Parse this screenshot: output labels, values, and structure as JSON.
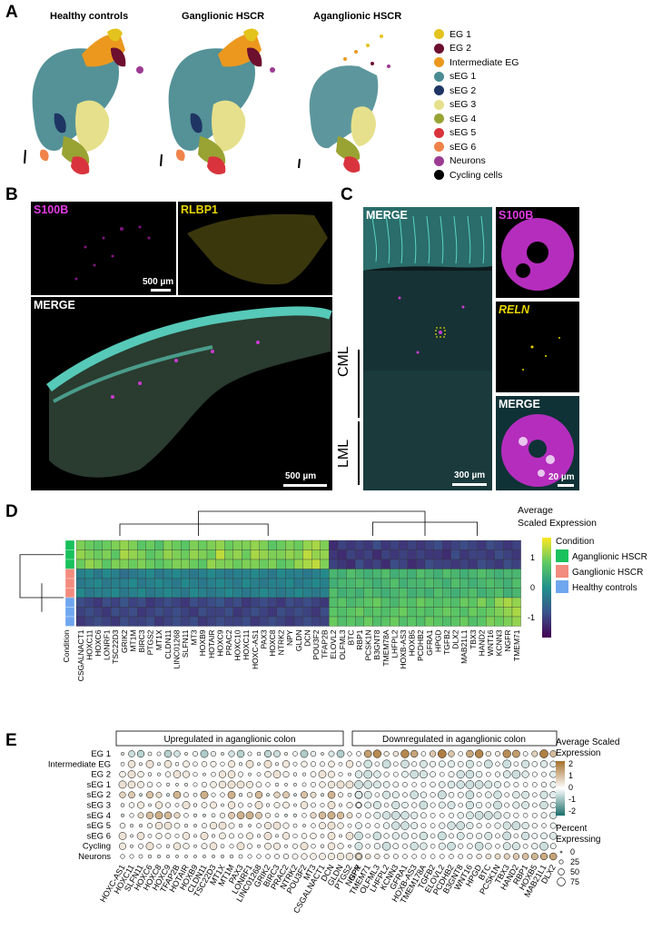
{
  "panels": {
    "a": "A",
    "b": "B",
    "c": "C",
    "d": "D",
    "e": "E"
  },
  "umap": {
    "titles": [
      "Healthy controls",
      "Ganglionic HSCR",
      "Aganglionic HSCR"
    ],
    "legend": [
      {
        "label": "EG 1",
        "color": "#e3c31d"
      },
      {
        "label": "EG 2",
        "color": "#6d0f2e"
      },
      {
        "label": "Intermediate EG",
        "color": "#ec981e"
      },
      {
        "label": "sEG 1",
        "color": "#4b8c92"
      },
      {
        "label": "sEG 2",
        "color": "#1e3563"
      },
      {
        "label": "sEG 3",
        "color": "#e6e08c"
      },
      {
        "label": "sEG 4",
        "color": "#99a333"
      },
      {
        "label": "sEG 5",
        "color": "#d9343d"
      },
      {
        "label": "sEG 6",
        "color": "#f0834a"
      },
      {
        "label": "Neurons",
        "color": "#9c3b92"
      },
      {
        "label": "Cycling cells",
        "color": "#000000"
      }
    ]
  },
  "micro_b": {
    "s100b": "S100B",
    "rlbp1": "RLBP1",
    "merge": "MERGE",
    "scale1": "500 µm",
    "scale2": "500 µm"
  },
  "micro_c": {
    "merge": "MERGE",
    "s100b": "S100B",
    "reln": "RELN",
    "merge2": "MERGE",
    "cml": "CML",
    "lml": "LML",
    "scale1": "300 µm",
    "scale2": "20 µm"
  },
  "heatmap": {
    "title_line1": "Average",
    "title_line2": "Scaled Expression",
    "colorbar_ticks": [
      "1",
      "0",
      "-1"
    ],
    "condition_title": "Condition",
    "conditions": [
      {
        "label": "Aganglionic HSCR",
        "color": "#19c15c"
      },
      {
        "label": "Ganglionic HSCR",
        "color": "#f28c7e"
      },
      {
        "label": "Healthy controls",
        "color": "#6fa7ef"
      }
    ],
    "condition_axis_label": "Condition",
    "genes": [
      "CSGALNACT1",
      "HOXC11",
      "HOXC6",
      "LONRF1",
      "TSC22D3",
      "GRIK2",
      "MT1M",
      "BIRC3",
      "PTGS2",
      "MT1X",
      "CLDN11",
      "LINC01268",
      "SLFN11",
      "MT3",
      "HOXB9",
      "HOTAIR",
      "HOXC9",
      "PRAC2",
      "HOXC10",
      "HOXC11",
      "HOXC-AS1",
      "PAX3",
      "HOXC8",
      "NTRK2",
      "NPY",
      "GLDN",
      "DCN",
      "POU3F2",
      "TFAP2B",
      "ELOVL2",
      "OLFML3",
      "BTC",
      "RBP1",
      "PCSK1N",
      "B3GNT8",
      "TMEM78A",
      "LHFPL2",
      "HOXB-AS3",
      "HOXB5",
      "PCDHB2",
      "GFRA1",
      "HPGD",
      "TGFB2",
      "DLX2",
      "MAB21L1",
      "TBX3",
      "HAND2",
      "WNT16",
      "KCNN3",
      "NGFR",
      "TMEM71"
    ],
    "group_sizes": [
      3,
      3,
      3
    ],
    "values": [
      [
        0.9,
        0.8,
        0.7,
        0.8,
        0.9,
        1.0,
        0.9,
        0.7,
        0.8,
        0.6,
        0.9,
        0.8,
        0.7,
        0.9,
        0.8,
        0.9,
        1.0,
        0.8,
        0.9,
        0.9,
        1.0,
        0.9,
        0.7,
        0.8,
        0.9,
        0.8,
        1.0,
        1.1,
        0.9,
        -1.1,
        -0.9,
        -1.0,
        -0.9,
        -1.0,
        -0.8,
        -1.0,
        -0.9,
        -1.0,
        -0.9,
        -1.0,
        -0.9,
        -0.8,
        -1.0,
        -0.9,
        -0.8,
        -0.9,
        -1.0,
        -0.8,
        -0.9,
        -1.0,
        -0.9
      ],
      [
        1.0,
        0.9,
        0.8,
        0.9,
        0.7,
        1.1,
        1.0,
        0.9,
        0.7,
        0.8,
        1.0,
        0.9,
        0.8,
        1.0,
        0.9,
        0.8,
        1.2,
        0.9,
        1.0,
        0.8,
        1.1,
        1.0,
        0.9,
        0.9,
        1.0,
        0.9,
        1.2,
        1.0,
        1.0,
        -1.0,
        -1.1,
        -0.9,
        -1.0,
        -0.9,
        -1.1,
        -0.9,
        -1.0,
        -0.9,
        -1.0,
        -0.9,
        -1.0,
        -1.0,
        -1.1,
        -0.8,
        -1.0,
        -0.9,
        -0.9,
        -1.0,
        -0.8,
        -0.9,
        -1.0
      ],
      [
        0.8,
        1.0,
        0.9,
        0.7,
        0.9,
        0.9,
        0.8,
        0.9,
        0.8,
        0.7,
        0.8,
        0.9,
        0.9,
        0.8,
        0.7,
        1.0,
        0.9,
        0.9,
        0.8,
        0.9,
        0.9,
        0.8,
        0.9,
        0.7,
        0.8,
        1.0,
        1.1,
        1.2,
        0.9,
        -0.9,
        -1.0,
        -1.1,
        -0.8,
        -1.0,
        -0.9,
        -1.1,
        -0.8,
        -0.9,
        -1.1,
        -1.0,
        -0.8,
        -0.9,
        -0.9,
        -1.0,
        -0.9,
        -1.0,
        -0.8,
        -0.9,
        -1.0,
        -0.8,
        -0.9
      ],
      [
        -0.2,
        -0.1,
        -0.3,
        -0.1,
        -0.2,
        -0.4,
        -0.3,
        -0.2,
        -0.1,
        -0.3,
        -0.2,
        -0.1,
        -0.2,
        -0.3,
        -0.2,
        -0.1,
        -0.2,
        -0.3,
        -0.2,
        -0.2,
        -0.1,
        -0.2,
        -0.3,
        -0.1,
        -0.2,
        -0.2,
        -0.3,
        -0.2,
        -0.1,
        0.5,
        0.4,
        0.6,
        0.5,
        0.4,
        0.5,
        0.6,
        0.4,
        0.5,
        0.4,
        0.6,
        0.5,
        0.4,
        0.6,
        0.5,
        0.4,
        0.5,
        0.6,
        0.5,
        0.4,
        0.5,
        0.5
      ],
      [
        -0.3,
        -0.2,
        -0.1,
        -0.3,
        -0.2,
        -0.2,
        -0.1,
        -0.3,
        -0.2,
        -0.1,
        -0.2,
        -0.3,
        -0.1,
        -0.2,
        -0.3,
        -0.2,
        -0.1,
        -0.2,
        -0.3,
        -0.1,
        -0.2,
        -0.3,
        -0.2,
        -0.2,
        -0.1,
        -0.3,
        -0.2,
        -0.1,
        -0.2,
        0.4,
        0.5,
        0.5,
        0.6,
        0.5,
        0.4,
        0.5,
        0.6,
        0.4,
        0.5,
        0.5,
        0.6,
        0.5,
        0.4,
        0.6,
        0.5,
        0.4,
        0.5,
        0.6,
        0.5,
        0.4,
        0.6
      ],
      [
        -0.1,
        -0.3,
        -0.2,
        -0.2,
        -0.1,
        -0.3,
        -0.2,
        -0.1,
        -0.3,
        -0.2,
        -0.1,
        -0.2,
        -0.3,
        -0.1,
        -0.2,
        -0.3,
        -0.2,
        -0.1,
        -0.2,
        -0.3,
        -0.2,
        -0.1,
        -0.2,
        -0.3,
        -0.2,
        -0.1,
        -0.2,
        -0.3,
        -0.2,
        0.6,
        0.4,
        0.5,
        0.4,
        0.6,
        0.5,
        0.4,
        0.5,
        0.6,
        0.4,
        0.5,
        0.4,
        0.6,
        0.5,
        0.4,
        0.5,
        0.6,
        0.4,
        0.5,
        0.6,
        0.4,
        0.5
      ],
      [
        -0.8,
        -0.9,
        -1.0,
        -0.8,
        -0.9,
        -0.7,
        -0.9,
        -0.8,
        -1.0,
        -0.9,
        -0.8,
        -0.9,
        -1.0,
        -0.8,
        -0.9,
        -0.8,
        -0.7,
        -0.9,
        -0.8,
        -1.0,
        -0.9,
        -0.8,
        -0.9,
        -1.0,
        -0.8,
        -0.9,
        -0.8,
        -0.9,
        -1.0,
        0.6,
        0.7,
        0.5,
        0.6,
        0.7,
        0.8,
        0.6,
        0.5,
        0.7,
        0.6,
        0.8,
        0.7,
        0.6,
        0.7,
        0.6,
        0.8,
        0.7,
        0.9,
        0.7,
        1.0,
        1.1,
        1.0
      ],
      [
        -0.9,
        -0.8,
        -0.9,
        -1.0,
        -0.8,
        -0.9,
        -0.8,
        -1.0,
        -0.9,
        -0.8,
        -0.9,
        -0.8,
        -0.9,
        -1.0,
        -0.8,
        -0.9,
        -0.9,
        -0.8,
        -1.0,
        -0.9,
        -0.8,
        -0.9,
        -1.0,
        -0.8,
        -0.9,
        -0.8,
        -0.9,
        -1.0,
        -0.8,
        0.7,
        0.6,
        0.7,
        0.8,
        0.6,
        0.7,
        0.6,
        0.7,
        0.8,
        0.6,
        0.7,
        0.6,
        0.7,
        0.8,
        0.7,
        0.6,
        0.8,
        0.7,
        0.8,
        0.9,
        1.0,
        1.1
      ],
      [
        -1.0,
        -0.9,
        -0.8,
        -0.9,
        -1.0,
        -0.8,
        -0.9,
        -0.9,
        -0.8,
        -1.0,
        -0.9,
        -0.8,
        -0.9,
        -0.8,
        -1.0,
        -0.9,
        -0.8,
        -0.9,
        -0.9,
        -0.8,
        -1.0,
        -0.9,
        -0.8,
        -0.9,
        -1.0,
        -0.9,
        -0.8,
        -0.9,
        -0.9,
        0.8,
        0.6,
        0.7,
        0.6,
        0.8,
        0.6,
        0.7,
        0.8,
        0.6,
        0.7,
        0.6,
        0.8,
        0.7,
        0.6,
        0.7,
        0.8,
        0.6,
        0.7,
        0.9,
        0.8,
        0.9,
        1.0
      ]
    ]
  },
  "dotplot": {
    "up_title": "Upregulated in aganglionic colon",
    "down_title": "Downregulated in aganglionic colon",
    "rows": [
      "EG 1",
      "Intermediate EG",
      "EG 2",
      "sEG 1",
      "sEG 2",
      "sEG 3",
      "sEG 4",
      "sEG 5",
      "sEG 6",
      "Cycling",
      "Neurons"
    ],
    "up_genes": [
      "HOXC-AS1",
      "HOXC11",
      "SLFN11",
      "HOXC6",
      "HOXC8",
      "HOXC9",
      "TFAP2B",
      "HOTAIR",
      "HOXB9",
      "CLDN11",
      "TSC22D3",
      "MT1X",
      "MT1M",
      "PAX3",
      "LONRF1",
      "LINC01268",
      "GRIK2",
      "BIRC3",
      "PRAC2",
      "NTRK2",
      "POU3F2",
      "MT3",
      "CSGALNACT1",
      "DCN",
      "GLDN",
      "PTGS2",
      "NPY"
    ],
    "down_genes": [
      "NGFR",
      "TMEM71",
      "OLFML3",
      "LHFPL2",
      "KCNN3",
      "GFRA1",
      "HOXB-AS3",
      "TMEM178A",
      "TGFB2",
      "ELOVL2",
      "PCDHB2",
      "B3GNT8",
      "WNT16",
      "HPGD",
      "BTC",
      "PCSK1N",
      "TBX3",
      "HAND2",
      "RBP1",
      "HOXB5",
      "MAB21L1",
      "DLX2"
    ],
    "legend_title1": "Average Scaled",
    "legend_title2": "Expression",
    "legend_ticks": [
      "2",
      "1",
      "0",
      "-1",
      "-2"
    ],
    "pct_title1": "Percent",
    "pct_title2": "Expressing",
    "pct_ticks": [
      "0",
      "25",
      "50",
      "75"
    ]
  }
}
